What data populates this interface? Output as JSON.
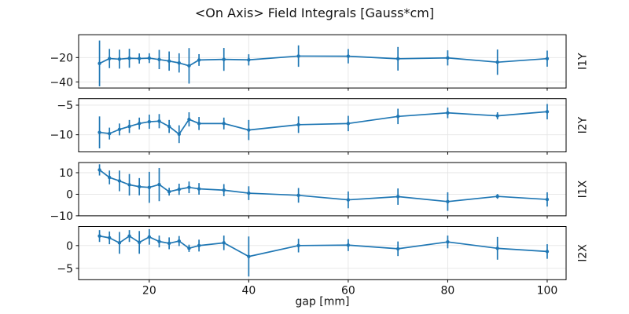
{
  "colors": {
    "series": "#1f77b4",
    "grid": "#e5e5e5",
    "frame": "#000000",
    "text": "#141414",
    "background": "#ffffff"
  },
  "chart_data": {
    "type": "line",
    "title": "<On Axis> Field Integrals [Gauss*cm]",
    "xlabel": "gap [mm]",
    "grid": true,
    "legend": "none",
    "marker": "point",
    "error_bars": true,
    "x": [
      10,
      12,
      14,
      16,
      18,
      20,
      22,
      24,
      26,
      28,
      30,
      35,
      40,
      50,
      60,
      70,
      80,
      90,
      100
    ],
    "xticks": [
      20,
      40,
      60,
      80,
      100
    ],
    "xlim": [
      5.8,
      103.8
    ],
    "subplots": [
      {
        "label": "I1Y",
        "y": [
          -24.8,
          -20.8,
          -21.3,
          -20.6,
          -20.8,
          -20.5,
          -21.6,
          -22.9,
          -24.4,
          -26.8,
          -22.0,
          -21.5,
          -21.9,
          -18.8,
          -18.9,
          -21.0,
          -20.3,
          -23.8,
          -20.9
        ],
        "yerr": [
          18.8,
          7.9,
          7.8,
          7.8,
          4.2,
          4.0,
          7.9,
          7.9,
          7.9,
          14.6,
          4.8,
          9.4,
          4.6,
          8.8,
          5.9,
          9.7,
          6.2,
          10.4,
          6.6
        ],
        "yticks": [
          -20,
          -40
        ],
        "ylim": [
          -45.0,
          -1.3
        ]
      },
      {
        "label": "I2Y",
        "y": [
          -9.6,
          -9.8,
          -9.1,
          -8.6,
          -8.1,
          -7.8,
          -7.7,
          -8.6,
          -9.9,
          -7.4,
          -8.1,
          -8.1,
          -9.2,
          -8.3,
          -8.1,
          -6.9,
          -6.3,
          -6.8,
          -6.1
        ],
        "yerr": [
          2.7,
          1.0,
          1.0,
          1.1,
          1.0,
          1.2,
          1.2,
          1.1,
          1.5,
          1.2,
          1.1,
          1.0,
          1.7,
          1.4,
          1.3,
          1.3,
          0.9,
          0.6,
          1.3
        ],
        "yticks": [
          -5,
          -10
        ],
        "ylim": [
          -12.9,
          -3.9
        ]
      },
      {
        "label": "I1X",
        "y": [
          11.3,
          7.8,
          6.2,
          4.4,
          3.5,
          3.2,
          4.5,
          1.2,
          2.3,
          3.2,
          2.5,
          1.9,
          0.5,
          -0.5,
          -2.6,
          -1.1,
          -3.4,
          -1.0,
          -2.4
        ],
        "yerr": [
          2.6,
          3.2,
          4.8,
          5.0,
          4.0,
          7.2,
          7.7,
          1.8,
          2.6,
          2.7,
          2.7,
          2.8,
          3.2,
          3.4,
          3.9,
          3.8,
          4.3,
          1.1,
          3.3
        ],
        "yticks": [
          10,
          0,
          -10
        ],
        "ylim": [
          -10.0,
          14.7
        ]
      },
      {
        "label": "I2X",
        "y": [
          2.1,
          1.7,
          0.6,
          2.1,
          0.7,
          1.9,
          0.9,
          0.5,
          1.0,
          -0.6,
          0.0,
          0.6,
          -2.4,
          0.0,
          0.1,
          -0.7,
          0.8,
          -0.6,
          -1.3
        ],
        "yerr": [
          1.3,
          1.4,
          2.4,
          1.3,
          2.5,
          1.7,
          1.3,
          1.3,
          1.1,
          0.8,
          1.3,
          1.6,
          4.4,
          1.5,
          1.3,
          1.6,
          1.4,
          2.5,
          1.6
        ],
        "yticks": [
          0,
          -5
        ],
        "ylim": [
          -7.5,
          4.2
        ]
      }
    ]
  }
}
